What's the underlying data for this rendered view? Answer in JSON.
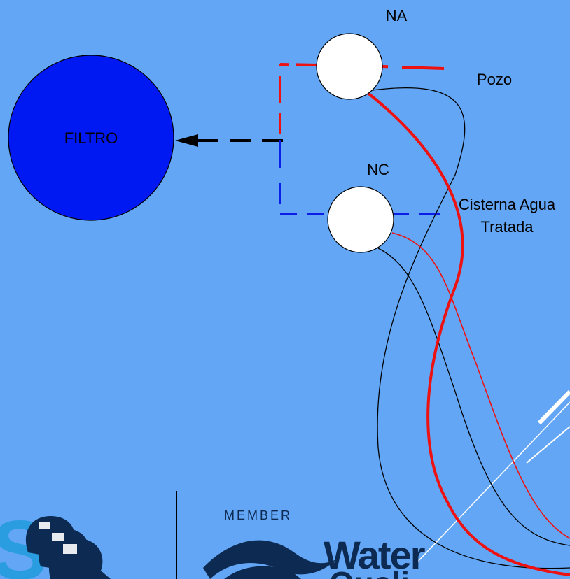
{
  "colors": {
    "background": "#63a6f5",
    "filter_fill": "#0018f2",
    "valve_fill": "#ffffff",
    "red_line": "#ee1111",
    "blue_line": "#0a1ee8",
    "black_line": "#000000",
    "logo_navy": "#0d2a52",
    "logo_cyan": "#2a9ce0",
    "white_stripe": "#ffffff"
  },
  "diagram": {
    "filter": {
      "label": "FILTRO"
    },
    "valve_na": {
      "label": "NA"
    },
    "valve_nc": {
      "label": "NC"
    },
    "label_pozo": "Pozo",
    "label_cisterna_line1": "Cisterna Agua",
    "label_cisterna_line2": "Tratada"
  },
  "logos": {
    "member_text": "MEMBER",
    "water_text": "Water",
    "quality_text_partial": "Quali",
    "left_brand_icon": "users-group-icon"
  }
}
